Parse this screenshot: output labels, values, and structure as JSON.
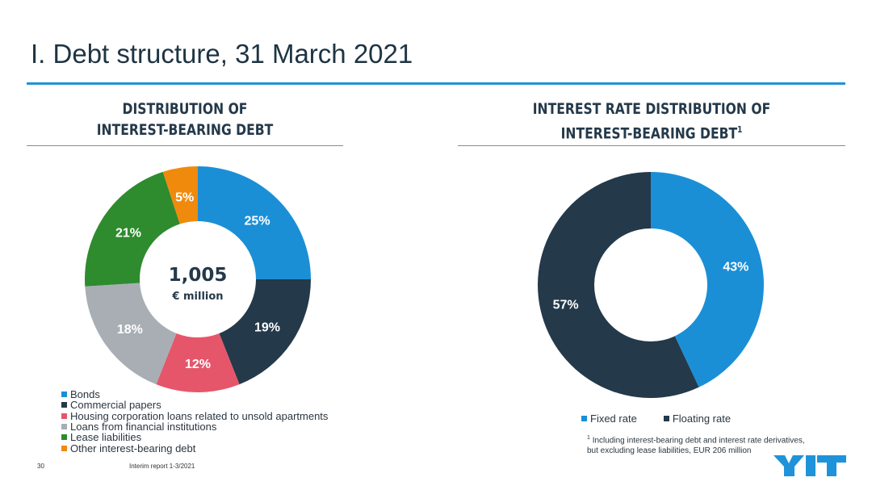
{
  "page": {
    "title": "I. Debt structure, 31 March 2021",
    "page_number": "30",
    "report_name": "Interim report 1-3/2021",
    "logo_text": "YIT",
    "accent_color": "#1f93d9"
  },
  "chart_data": [
    {
      "type": "pie",
      "title_line1": "DISTRIBUTION OF",
      "title_line2": "INTEREST-BEARING DEBT",
      "center_total": "1,005",
      "center_unit": "€ million",
      "legend_position": "bottom-left",
      "categories": [
        "Bonds",
        "Commercial papers",
        "Housing corporation loans related to unsold apartments",
        "Loans from financial institutions",
        "Lease liabilities",
        "Other interest-bearing debt"
      ],
      "values": [
        25,
        19,
        12,
        18,
        21,
        5
      ],
      "labels": [
        "25%",
        "19%",
        "12%",
        "18%",
        "21%",
        "5%"
      ],
      "colors": [
        "#1a8fd6",
        "#24394a",
        "#e5566a",
        "#a8aeb4",
        "#2e8b2e",
        "#f08a0c"
      ]
    },
    {
      "type": "pie",
      "title_line1": "INTEREST RATE DISTRIBUTION OF",
      "title_line2": "INTEREST-BEARING DEBT",
      "title_superscript": "1",
      "legend_position": "bottom",
      "categories": [
        "Fixed rate",
        "Floating rate"
      ],
      "values": [
        43,
        57
      ],
      "labels": [
        "43%",
        "57%"
      ],
      "colors": [
        "#1a8fd6",
        "#24394a"
      ],
      "footnote_mark": "1",
      "footnote_line1": "Including interest-bearing debt and interest rate derivatives,",
      "footnote_line2": "but excluding lease liabilities, EUR 206 million"
    }
  ]
}
